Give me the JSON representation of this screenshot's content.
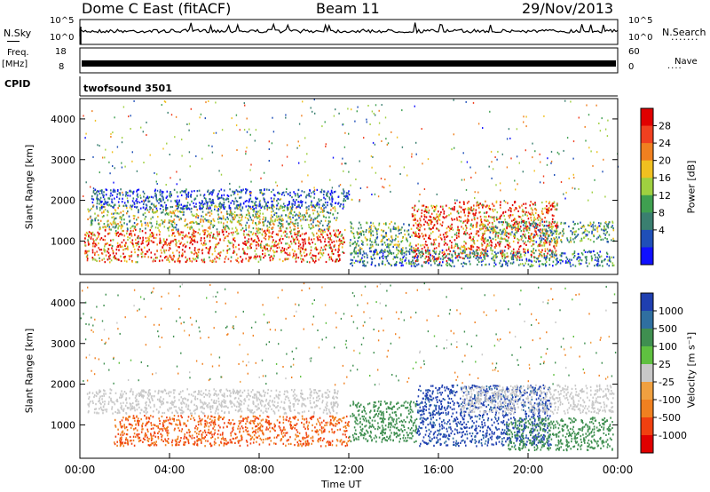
{
  "header": {
    "station": "Dome C East (fitACF)",
    "beam": "Beam 11",
    "date": "29/Nov/2013"
  },
  "left_labels": {
    "nsky": "N.Sky",
    "freq": "Freq.",
    "freq_unit": "[MHz]",
    "cpid": "CPID"
  },
  "right_labels": {
    "nsearch": "N.Search",
    "nave": "Nave"
  },
  "noise_axis": {
    "left_ticks": [
      "10^5",
      "10^0"
    ],
    "right_ticks": [
      "10^5",
      "10^0"
    ]
  },
  "freq_axis": {
    "left_ticks": [
      "18",
      "8"
    ],
    "right_ticks": [
      "60",
      "0"
    ]
  },
  "cpid_text": "twofsound 3501",
  "chart_data": [
    {
      "type": "heatmap",
      "panel": "power",
      "ylabel": "Slant Range [km]",
      "ylim": [
        180,
        4500
      ],
      "y_ticks": [
        "4000",
        "3000",
        "2000",
        "1000"
      ],
      "colorbar_label": "Power [dB]",
      "colorbar_ticks": [
        "28",
        "24",
        "20",
        "16",
        "12",
        "8",
        "4"
      ],
      "colorbar_colors": [
        "#1010ff",
        "#1f4fb8",
        "#3a7f70",
        "#3fa050",
        "#9fd040",
        "#f0c020",
        "#f08020",
        "#f04020",
        "#e00000"
      ],
      "bands": [
        {
          "t0": 0.2,
          "t1": 11.8,
          "r0": 500,
          "r1": 1300,
          "level": 26
        },
        {
          "t0": 0.3,
          "t1": 11.5,
          "r0": 1300,
          "r1": 1900,
          "level": 16
        },
        {
          "t0": 12.0,
          "t1": 14.8,
          "r0": 700,
          "r1": 1500,
          "level": 14
        },
        {
          "t0": 14.8,
          "t1": 16.5,
          "r0": 500,
          "r1": 1900,
          "level": 27
        },
        {
          "t0": 16.5,
          "t1": 21.3,
          "r0": 600,
          "r1": 2000,
          "level": 25
        },
        {
          "t0": 12.0,
          "t1": 23.8,
          "r0": 400,
          "r1": 800,
          "level": 10
        },
        {
          "t0": 18.0,
          "t1": 23.8,
          "r0": 1000,
          "r1": 1500,
          "level": 13
        },
        {
          "t0": 0.5,
          "t1": 12.0,
          "r0": 1800,
          "r1": 2300,
          "level": 7
        }
      ]
    },
    {
      "type": "heatmap",
      "panel": "velocity",
      "xlabel": "Time UT",
      "ylabel": "Slant Range [km]",
      "xlim": [
        0,
        24
      ],
      "ylim": [
        180,
        4500
      ],
      "x_ticks": [
        "00:00",
        "04:00",
        "08:00",
        "12:00",
        "16:00",
        "20:00",
        "00:00"
      ],
      "y_ticks": [
        "4000",
        "3000",
        "2000",
        "1000"
      ],
      "colorbar_label": "Velocity [m s⁻¹]",
      "colorbar_ticks": [
        "1000",
        "500",
        "100",
        "25",
        "-25",
        "-100",
        "-500",
        "-1000"
      ],
      "colorbar_colors": [
        "#1f3fb0",
        "#2f6fa0",
        "#3f8f50",
        "#5fc040",
        "#c8c8c8",
        "#f0a040",
        "#f08020",
        "#f04010",
        "#e00000"
      ],
      "bands": [
        {
          "t0": 0.3,
          "t1": 11.5,
          "r0": 1300,
          "r1": 1900,
          "level": 0
        },
        {
          "t0": 1.5,
          "t1": 12.0,
          "r0": 500,
          "r1": 1250,
          "level": -300
        },
        {
          "t0": 12.0,
          "t1": 15.0,
          "r0": 600,
          "r1": 1600,
          "level": 150
        },
        {
          "t0": 15.0,
          "t1": 21.0,
          "r0": 500,
          "r1": 2000,
          "level": 900
        },
        {
          "t0": 17.0,
          "t1": 23.8,
          "r0": 1300,
          "r1": 2000,
          "level": 0
        },
        {
          "t0": 19.0,
          "t1": 23.8,
          "r0": 400,
          "r1": 1200,
          "level": 100
        }
      ]
    }
  ]
}
